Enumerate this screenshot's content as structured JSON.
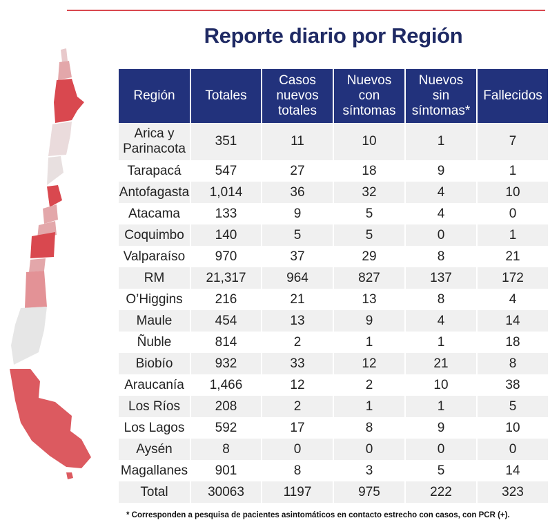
{
  "title": "Reporte diario por Región",
  "footnote": "* Corresponden a pesquisa de pacientes asintomáticos en contacto estrecho con casos, con PCR (+).",
  "chart_data": {
    "type": "table",
    "title": "Reporte diario por Región",
    "columns": [
      "Región",
      "Totales",
      "Casos nuevos totales",
      "Nuevos con síntomas",
      "Nuevos sin síntomas*",
      "Fallecidos"
    ],
    "rows": [
      [
        "Arica y Parinacota",
        "351",
        "11",
        "10",
        "1",
        "7"
      ],
      [
        "Tarapacá",
        "547",
        "27",
        "18",
        "9",
        "1"
      ],
      [
        "Antofagasta",
        "1,014",
        "36",
        "32",
        "4",
        "10"
      ],
      [
        "Atacama",
        "133",
        "9",
        "5",
        "4",
        "0"
      ],
      [
        "Coquimbo",
        "140",
        "5",
        "5",
        "0",
        "1"
      ],
      [
        "Valparaíso",
        "970",
        "37",
        "29",
        "8",
        "21"
      ],
      [
        "RM",
        "21,317",
        "964",
        "827",
        "137",
        "172"
      ],
      [
        "O’Higgins",
        "216",
        "21",
        "13",
        "8",
        "4"
      ],
      [
        "Maule",
        "454",
        "13",
        "9",
        "4",
        "14"
      ],
      [
        "Ñuble",
        "814",
        "2",
        "1",
        "1",
        "18"
      ],
      [
        "Biobío",
        "932",
        "33",
        "12",
        "21",
        "8"
      ],
      [
        "Araucanía",
        "1,466",
        "12",
        "2",
        "10",
        "38"
      ],
      [
        "Los Ríos",
        "208",
        "2",
        "1",
        "1",
        "5"
      ],
      [
        "Los Lagos",
        "592",
        "17",
        "8",
        "9",
        "10"
      ],
      [
        "Aysén",
        "8",
        "0",
        "0",
        "0",
        "0"
      ],
      [
        "Magallanes",
        "901",
        "8",
        "3",
        "5",
        "14"
      ]
    ],
    "total": [
      "Total",
      "30063",
      "1197",
      "975",
      "222",
      "323"
    ]
  },
  "colors": {
    "header_bg": "#22327c",
    "title": "#1f2a64",
    "accent_red": "#d9484f",
    "row_alt": "#f0f0f0"
  }
}
